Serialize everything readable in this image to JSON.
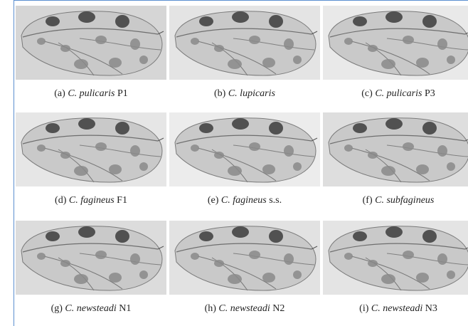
{
  "panels": [
    {
      "label": "(a)",
      "species": "C. pulicaris",
      "suffix": "P1"
    },
    {
      "label": "(b)",
      "species": "C. lupicaris"
    },
    {
      "label": "(c)",
      "species": "C. pulicaris",
      "suffix": "P3"
    },
    {
      "label": "(d)",
      "species": "C. fagineus",
      "suffix": "F1"
    },
    {
      "label": "(e)",
      "species": "C. fagineus",
      "suffix": "s.s."
    },
    {
      "label": "(f)",
      "species": "C. subfagineus"
    },
    {
      "label": "(g)",
      "species": "C. newsteadi",
      "suffix": "N1"
    },
    {
      "label": "(h)",
      "species": "C. newsteadi",
      "suffix": "N2"
    },
    {
      "label": "(i)",
      "species": "C. newsteadi",
      "suffix": "N3"
    }
  ]
}
